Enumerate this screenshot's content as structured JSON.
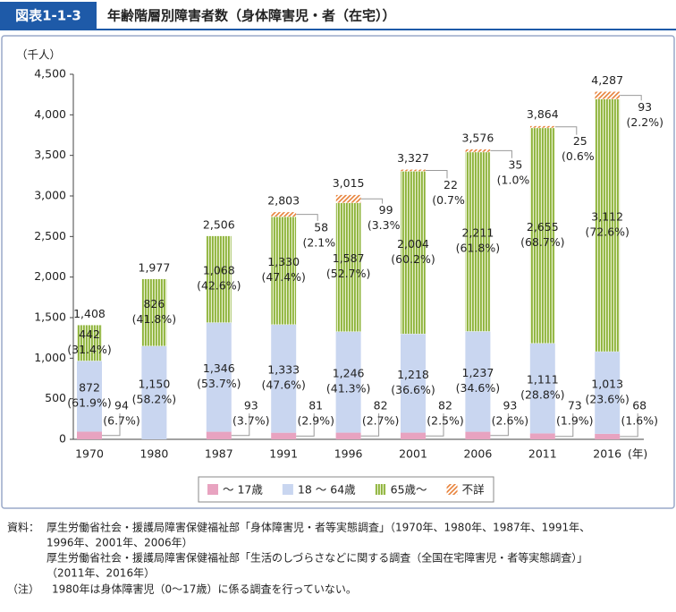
{
  "header": {
    "figure_label": "図表1-1-3",
    "title": "年齢階層別障害者数（身体障害児・者（在宅））"
  },
  "chart_data": {
    "type": "stacked_bar",
    "y_unit_label": "（千人）",
    "x_unit_label": "(年)",
    "categories": [
      "1970",
      "1980",
      "1987",
      "1991",
      "1996",
      "2001",
      "2006",
      "2011",
      "2016"
    ],
    "series": [
      {
        "name": "～ 17歳",
        "color": "#e8a3c0",
        "pattern": "solid",
        "label_position": "outside-bottom",
        "values": [
          94,
          null,
          93,
          81,
          82,
          82,
          93,
          73,
          68
        ],
        "value_labels": [
          [
            "94",
            "(6.7%)"
          ],
          null,
          [
            "93",
            "(3.7%)"
          ],
          [
            "81",
            "(2.9%)"
          ],
          [
            "82",
            "(2.7%)"
          ],
          [
            "82",
            "(2.5%)"
          ],
          [
            "93",
            "(2.6%)"
          ],
          [
            "73",
            "(1.9%)"
          ],
          [
            "68",
            "(1.6%)"
          ]
        ]
      },
      {
        "name": "18 ～ 64歳",
        "color": "#c9d6f0",
        "pattern": "solid",
        "label_position": "inside",
        "values": [
          872,
          1150,
          1346,
          1333,
          1246,
          1218,
          1237,
          1111,
          1013
        ],
        "value_labels": [
          [
            "872",
            "(61.9%)"
          ],
          [
            "1,150",
            "(58.2%)"
          ],
          [
            "1,346",
            "(53.7%)"
          ],
          [
            "1,333",
            "(47.6%)"
          ],
          [
            "1,246",
            "(41.3%)"
          ],
          [
            "1,218",
            "(36.6%)"
          ],
          [
            "1,237",
            "(34.6%)"
          ],
          [
            "1,111",
            "(28.8%)"
          ],
          [
            "1,013",
            "(23.6%)"
          ]
        ]
      },
      {
        "name": "65歳～",
        "color": "#8db33a",
        "pattern": "vertical-stripes",
        "label_position": "inside",
        "values": [
          442,
          826,
          1068,
          1330,
          1587,
          2004,
          2211,
          2655,
          3112
        ],
        "value_labels": [
          [
            "442",
            "(31.4%)"
          ],
          [
            "826",
            "(41.8%)"
          ],
          [
            "1,068",
            "(42.6%)"
          ],
          [
            "1,330",
            "(47.4%)"
          ],
          [
            "1,587",
            "(52.7%)"
          ],
          [
            "2,004",
            "(60.2%)"
          ],
          [
            "2,211",
            "(61.8%)"
          ],
          [
            "2,655",
            "(68.7%)"
          ],
          [
            "3,112",
            "(72.6%)"
          ]
        ]
      },
      {
        "name": "不詳",
        "color": "#e8823a",
        "pattern": "diagonal-hatch",
        "label_position": "outside-top",
        "values": [
          null,
          null,
          null,
          58,
          99,
          22,
          35,
          25,
          93
        ],
        "value_labels": [
          null,
          null,
          null,
          [
            "58",
            "(2.1%)"
          ],
          [
            "99",
            "(3.3%)"
          ],
          [
            "22",
            "(0.7%)"
          ],
          [
            "35",
            "(1.0%)"
          ],
          [
            "25",
            "(0.6%)"
          ],
          [
            "93",
            "(2.2%)"
          ]
        ]
      }
    ],
    "totals": [
      1408,
      1977,
      2506,
      2803,
      3015,
      3327,
      3576,
      3864,
      4287
    ],
    "total_labels": [
      "1,408",
      "1,977",
      "2,506",
      "2,803",
      "3,015",
      "3,327",
      "3,576",
      "3,864",
      "4,287"
    ],
    "ylim": [
      0,
      4500
    ],
    "yticks": [
      0,
      500,
      {
        "value": 1000,
        "label": "1,000"
      },
      {
        "value": 1500,
        "label": "1,500"
      },
      {
        "value": 2000,
        "label": "2,000"
      },
      {
        "value": 2500,
        "label": "2,500"
      },
      {
        "value": 3000,
        "label": "3,000"
      },
      {
        "value": 3500,
        "label": "3,500"
      },
      {
        "value": 4000,
        "label": "4,000"
      },
      {
        "value": 4500,
        "label": "4,500"
      }
    ],
    "grid": false,
    "legend": "bottom"
  },
  "notes": {
    "source_label": "資料：",
    "source_lines": [
      "厚生労働省社会・援護局障害保健福祉部「身体障害児・者等実態調査」（1970年、1980年、1987年、1991年、",
      "1996年、2001年、2006年）",
      "厚生労働省社会・援護局障害保健福祉部「生活のしづらさなどに関する調査（全国在宅障害児・者等実態調査）」",
      "（2011年、2016年）"
    ],
    "note_label": "（注）",
    "note_text": "1980年は身体障害児（0～17歳）に係る調査を行っていない。"
  }
}
